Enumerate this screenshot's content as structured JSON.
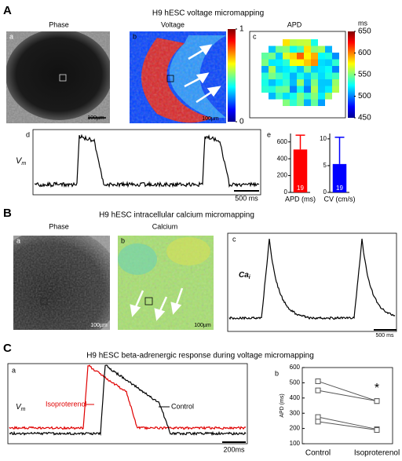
{
  "panel_a": {
    "letter": "A",
    "title": "H9 hESC voltage micromapping",
    "images": [
      {
        "letter": "a",
        "label": "Phase",
        "scale": "100µm"
      },
      {
        "letter": "b",
        "label": "Voltage",
        "scale": "100µm"
      },
      {
        "letter": "c",
        "label": "APD"
      }
    ],
    "voltage_colorbar": {
      "lim": [
        0,
        1
      ],
      "ticks": [
        0,
        1
      ]
    },
    "apd_colorbar": {
      "unit": "ms",
      "lim": [
        450,
        650
      ],
      "ticks": [
        450,
        500,
        550,
        600,
        650
      ]
    },
    "trace": {
      "letter": "d",
      "ylabel": {
        "symbol": "V",
        "subscript": "m"
      },
      "scale": "500 ms"
    },
    "bars_letter": "e"
  },
  "panel_b": {
    "letter": "B",
    "title": "H9 hESC intracellular calcium micromapping",
    "images": [
      {
        "letter": "a",
        "label": "Phase",
        "scale": "100µm"
      },
      {
        "letter": "b",
        "label": "Calcium",
        "scale": "100µm"
      }
    ],
    "trace": {
      "letter": "c",
      "ylabel": {
        "symbol": "Ca",
        "subscript": "i"
      },
      "scale": "500 ms"
    }
  },
  "panel_c": {
    "letter": "C",
    "title": "H9 hESC beta-adrenergic response during voltage micromapping",
    "trace": {
      "letter": "a",
      "ylabel": {
        "symbol": "V",
        "subscript": "m"
      },
      "scale": "200ms",
      "labels": [
        "Isoproterenol",
        "Control"
      ]
    }
  },
  "chart_data": [
    {
      "type": "bar",
      "categories": [
        "APD (ms)"
      ],
      "values": [
        510
      ],
      "errors": [
        170
      ],
      "color": "#ff0000",
      "ylim": [
        0,
        700
      ],
      "yticks": [
        0,
        200,
        400,
        600
      ],
      "n_labels": [
        "19"
      ]
    },
    {
      "type": "bar",
      "categories": [
        "CV (cm/s)"
      ],
      "values": [
        5.3
      ],
      "errors": [
        5
      ],
      "color": "#0000ff",
      "ylim": [
        0,
        11
      ],
      "yticks": [
        0,
        5,
        10
      ],
      "n_labels": [
        "19"
      ]
    },
    {
      "type": "line",
      "letter": "b",
      "ylabel": "APD (ms)",
      "categories": [
        "Control",
        "Isoproterenol"
      ],
      "color": "#555555",
      "series": [
        {
          "values": [
            510,
            380
          ]
        },
        {
          "values": [
            450,
            380
          ]
        },
        {
          "values": [
            275,
            195
          ]
        },
        {
          "values": [
            245,
            190
          ]
        }
      ],
      "ylim": [
        100,
        600
      ],
      "yticks": [
        100,
        200,
        300,
        400,
        500,
        600
      ],
      "annotations": [
        "*"
      ]
    }
  ]
}
